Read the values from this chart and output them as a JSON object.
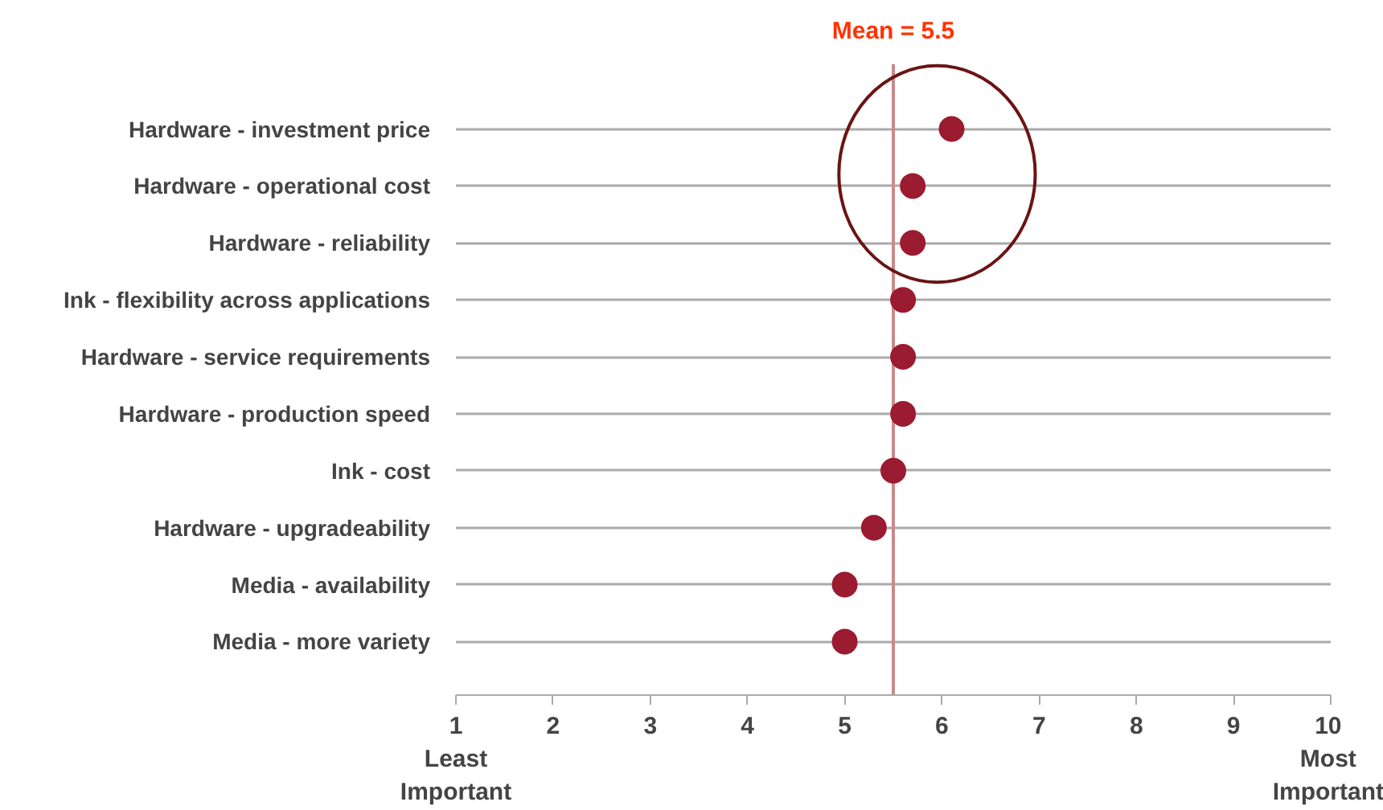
{
  "chart_data": {
    "type": "scatter",
    "categories": [
      "Hardware - investment price",
      "Hardware - operational cost",
      "Hardware - reliability",
      "Ink - flexibility across applications",
      "Hardware - service requirements",
      "Hardware - production speed",
      "Ink - cost",
      "Hardware - upgradeability",
      "Media - availability",
      "Media - more variety"
    ],
    "orientation": "horizontal",
    "series": [
      {
        "color": "#9b1b30",
        "values": [
          6.1,
          5.7,
          5.7,
          5.6,
          5.6,
          5.6,
          5.5,
          5.3,
          5.0,
          5.0
        ]
      }
    ],
    "xlim": [
      1,
      10
    ],
    "xticks": [
      {
        "value": 1,
        "label": "1\nLeast\nImportant"
      },
      2,
      3,
      4,
      5,
      6,
      7,
      8,
      9,
      {
        "value": 10,
        "label": "10\nMost\nImportant"
      }
    ],
    "ref_lines": [
      {
        "axis": "x",
        "value": 5.5,
        "label": "Mean = 5.5",
        "color": "#c88a8a"
      }
    ],
    "grid": "y",
    "marker": "circle"
  }
}
